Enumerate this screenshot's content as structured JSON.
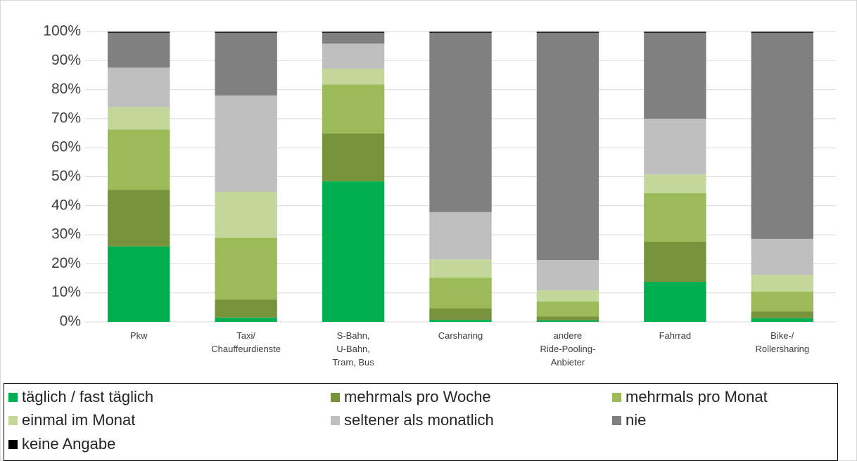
{
  "chart_data": {
    "type": "stacked_bar",
    "categories": [
      "Pkw",
      "Taxi/\nChauffeurdienste",
      "S-Bahn,\nU-Bahn,\nTram, Bus",
      "Carsharing",
      "andere\nRide-Pooling-\nAnbieter",
      "Fahrrad",
      "Bike-/\nRollersharing"
    ],
    "series": [
      {
        "name": "täglich / fast täglich",
        "color": "#00b050",
        "values": [
          26,
          1.5,
          48.4,
          0.7,
          0.5,
          13.8,
          1.3
        ]
      },
      {
        "name": "mehrmals pro Woche",
        "color": "#77933c",
        "values": [
          19.5,
          6.2,
          16.5,
          3.9,
          1.4,
          13.8,
          2.3
        ]
      },
      {
        "name": "mehrmals pro Monat",
        "color": "#9bbb59",
        "values": [
          20.8,
          21.3,
          16.9,
          10.7,
          5.1,
          16.7,
          6.8
        ]
      },
      {
        "name": "einmal im Monat",
        "color": "#c4d79b",
        "values": [
          7.7,
          15.8,
          5.4,
          6.2,
          3.9,
          6.5,
          5.8
        ]
      },
      {
        "name": "seltener als monatlich",
        "color": "#bfbfbf",
        "values": [
          13.6,
          33.2,
          8.7,
          16.3,
          10.4,
          19.2,
          12.4
        ]
      },
      {
        "name": "nie",
        "color": "#808080",
        "values": [
          12,
          21.6,
          3.7,
          61.8,
          78.3,
          29.6,
          71
        ]
      },
      {
        "name": "keine Angabe",
        "color": "#000000",
        "values": [
          0.4,
          0.4,
          0.4,
          0.4,
          0.4,
          0.4,
          0.4
        ]
      }
    ],
    "ylim": [
      0,
      100
    ],
    "yticks": [
      {
        "value": 0,
        "label": "0%"
      },
      {
        "value": 10,
        "label": "10%"
      },
      {
        "value": 20,
        "label": "20%"
      },
      {
        "value": 30,
        "label": "30%"
      },
      {
        "value": 40,
        "label": "40%"
      },
      {
        "value": 50,
        "label": "50%"
      },
      {
        "value": 60,
        "label": "60%"
      },
      {
        "value": 70,
        "label": "70%"
      },
      {
        "value": 80,
        "label": "80%"
      },
      {
        "value": 90,
        "label": "90%"
      },
      {
        "value": 100,
        "label": "100%"
      }
    ],
    "grid": true,
    "legend": "bottom"
  }
}
